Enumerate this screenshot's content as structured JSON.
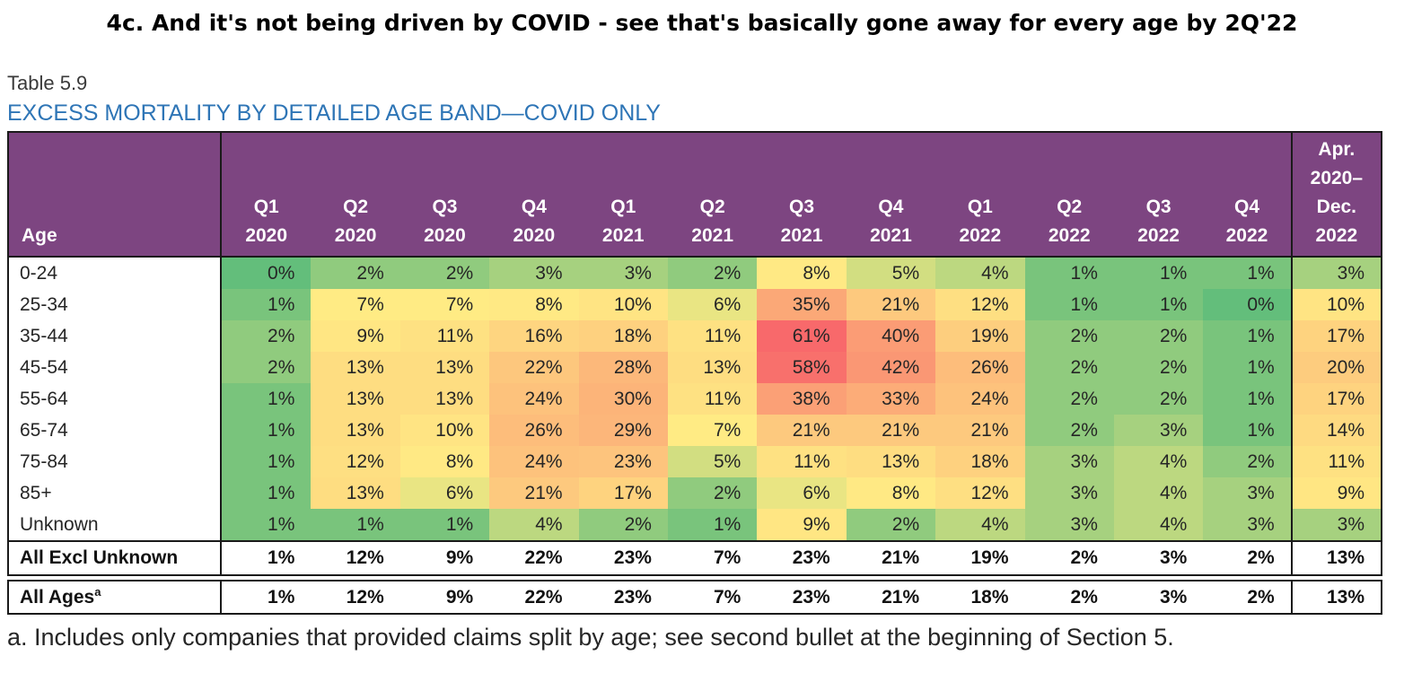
{
  "slide_title": "4c. And it's not being driven by COVID -  see that's basically gone away for every age by 2Q'22",
  "table_label": "Table 5.9",
  "table_title": "EXCESS MORTALITY BY DETAILED AGE BAND—COVID ONLY",
  "footnote": "a. Includes only companies that provided claims split by age; see second bullet at the beginning of Section 5.",
  "colors": {
    "header_bg": "#7D4581",
    "header_text": "#FFFFFF",
    "table_title_blue": "#2E75B6",
    "border": "#1A1A1A"
  },
  "chart_data": {
    "type": "heatmap",
    "title": "EXCESS MORTALITY BY DETAILED AGE BAND—COVID ONLY",
    "unit": "%",
    "corner_label": "Age",
    "columns": [
      [
        "Q1",
        "2020"
      ],
      [
        "Q2",
        "2020"
      ],
      [
        "Q3",
        "2020"
      ],
      [
        "Q4",
        "2020"
      ],
      [
        "Q1",
        "2021"
      ],
      [
        "Q2",
        "2021"
      ],
      [
        "Q3",
        "2021"
      ],
      [
        "Q4",
        "2021"
      ],
      [
        "Q1",
        "2022"
      ],
      [
        "Q2",
        "2022"
      ],
      [
        "Q3",
        "2022"
      ],
      [
        "Q4",
        "2022"
      ],
      [
        "Apr.",
        "2020–",
        "Dec.",
        "2022"
      ]
    ],
    "rows": [
      {
        "label": "0-24",
        "heat": true,
        "bold": false,
        "section": "heat",
        "values": [
          0,
          2,
          2,
          3,
          3,
          2,
          8,
          5,
          4,
          1,
          1,
          1,
          3
        ]
      },
      {
        "label": "25-34",
        "heat": true,
        "bold": false,
        "section": "heat",
        "values": [
          1,
          7,
          7,
          8,
          10,
          6,
          35,
          21,
          12,
          1,
          1,
          0,
          10
        ]
      },
      {
        "label": "35-44",
        "heat": true,
        "bold": false,
        "section": "heat",
        "values": [
          2,
          9,
          11,
          16,
          18,
          11,
          61,
          40,
          19,
          2,
          2,
          1,
          17
        ]
      },
      {
        "label": "45-54",
        "heat": true,
        "bold": false,
        "section": "heat",
        "values": [
          2,
          13,
          13,
          22,
          28,
          13,
          58,
          42,
          26,
          2,
          2,
          1,
          20
        ]
      },
      {
        "label": "55-64",
        "heat": true,
        "bold": false,
        "section": "heat",
        "values": [
          1,
          13,
          13,
          24,
          30,
          11,
          38,
          33,
          24,
          2,
          2,
          1,
          17
        ]
      },
      {
        "label": "65-74",
        "heat": true,
        "bold": false,
        "section": "heat",
        "values": [
          1,
          13,
          10,
          26,
          29,
          7,
          21,
          21,
          21,
          2,
          3,
          1,
          14
        ]
      },
      {
        "label": "75-84",
        "heat": true,
        "bold": false,
        "section": "heat",
        "values": [
          1,
          12,
          8,
          24,
          23,
          5,
          11,
          13,
          18,
          3,
          4,
          2,
          11
        ]
      },
      {
        "label": "85+",
        "heat": true,
        "bold": false,
        "section": "heat",
        "values": [
          1,
          13,
          6,
          21,
          17,
          2,
          6,
          8,
          12,
          3,
          4,
          3,
          9
        ]
      },
      {
        "label": "Unknown",
        "heat": true,
        "bold": false,
        "section": "heat",
        "values": [
          1,
          1,
          1,
          4,
          2,
          1,
          9,
          2,
          4,
          3,
          4,
          3,
          3
        ]
      },
      {
        "label": "All Excl Unknown",
        "heat": false,
        "bold": true,
        "section": "total",
        "values": [
          1,
          12,
          9,
          22,
          23,
          7,
          23,
          21,
          19,
          2,
          3,
          2,
          13
        ]
      },
      {
        "label": "All Ages",
        "sup": "a",
        "heat": false,
        "bold": true,
        "section": "grand",
        "values": [
          1,
          12,
          9,
          22,
          23,
          7,
          23,
          21,
          18,
          2,
          3,
          2,
          13
        ]
      }
    ],
    "color_scale": {
      "min_value": 0,
      "min_color": "#63BE7B",
      "mid_value": 7,
      "mid_color": "#FFEB84",
      "max_value": 61,
      "max_color": "#F8696B"
    }
  }
}
